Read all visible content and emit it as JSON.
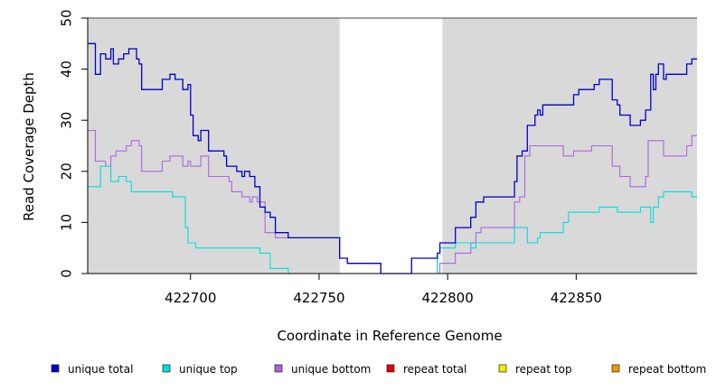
{
  "chart_data": {
    "type": "line",
    "title": "",
    "xlabel": "Coordinate in Reference Genome",
    "ylabel": "Read Coverage Depth",
    "xlim": [
      422660,
      422897
    ],
    "ylim": [
      0,
      50
    ],
    "xticks": [
      422700,
      422750,
      422800,
      422850
    ],
    "yticks": [
      0,
      10,
      20,
      30,
      40,
      50
    ],
    "shaded_regions": [
      [
        422660,
        422758
      ],
      [
        422798,
        422897
      ]
    ],
    "series": [
      {
        "name": "unique total",
        "color": "#0000cc",
        "points": [
          [
            422660,
            45
          ],
          [
            422663,
            39
          ],
          [
            422665,
            43
          ],
          [
            422667,
            42
          ],
          [
            422669,
            44
          ],
          [
            422670,
            41
          ],
          [
            422672,
            42
          ],
          [
            422674,
            43
          ],
          [
            422676,
            44
          ],
          [
            422679,
            42
          ],
          [
            422680,
            41
          ],
          [
            422681,
            36
          ],
          [
            422689,
            38
          ],
          [
            422692,
            39
          ],
          [
            422694,
            38
          ],
          [
            422697,
            36
          ],
          [
            422699,
            37
          ],
          [
            422700,
            31
          ],
          [
            422701,
            27
          ],
          [
            422703,
            26
          ],
          [
            422704,
            28
          ],
          [
            422707,
            24
          ],
          [
            422713,
            23
          ],
          [
            422714,
            21
          ],
          [
            422718,
            20
          ],
          [
            422720,
            19
          ],
          [
            422721,
            20
          ],
          [
            422723,
            19
          ],
          [
            422725,
            17
          ],
          [
            422727,
            13
          ],
          [
            422729,
            12
          ],
          [
            422731,
            11
          ],
          [
            422733,
            8
          ],
          [
            422738,
            7
          ],
          [
            422758,
            3
          ],
          [
            422761,
            2
          ],
          [
            422768,
            2
          ],
          [
            422774,
            0
          ],
          [
            422786,
            3
          ],
          [
            422796,
            4
          ],
          [
            422797,
            6
          ],
          [
            422803,
            9
          ],
          [
            422809,
            11
          ],
          [
            422811,
            14
          ],
          [
            422814,
            15
          ],
          [
            422826,
            18
          ],
          [
            422827,
            23
          ],
          [
            422829,
            24
          ],
          [
            422831,
            29
          ],
          [
            422834,
            31
          ],
          [
            422835,
            32
          ],
          [
            422836,
            31
          ],
          [
            422837,
            33
          ],
          [
            422849,
            35
          ],
          [
            422851,
            36
          ],
          [
            422857,
            37
          ],
          [
            422859,
            38
          ],
          [
            422864,
            34
          ],
          [
            422866,
            33
          ],
          [
            422867,
            31
          ],
          [
            422871,
            29
          ],
          [
            422875,
            30
          ],
          [
            422877,
            32
          ],
          [
            422879,
            39
          ],
          [
            422880,
            36
          ],
          [
            422881,
            39
          ],
          [
            422882,
            41
          ],
          [
            422884,
            38
          ],
          [
            422885,
            39
          ],
          [
            422893,
            41
          ],
          [
            422895,
            42
          ],
          [
            422897,
            42
          ]
        ]
      },
      {
        "name": "unique top",
        "color": "#00dddd",
        "points": [
          [
            422660,
            17
          ],
          [
            422665,
            21
          ],
          [
            422669,
            18
          ],
          [
            422672,
            19
          ],
          [
            422675,
            18
          ],
          [
            422677,
            16
          ],
          [
            422693,
            15
          ],
          [
            422698,
            9
          ],
          [
            422699,
            6
          ],
          [
            422702,
            5
          ],
          [
            422727,
            4
          ],
          [
            422731,
            1
          ],
          [
            422738,
            0
          ],
          [
            422796,
            4
          ],
          [
            422797,
            5
          ],
          [
            422803,
            6
          ],
          [
            422809,
            5
          ],
          [
            422811,
            6
          ],
          [
            422826,
            9
          ],
          [
            422831,
            6
          ],
          [
            422835,
            7
          ],
          [
            422836,
            8
          ],
          [
            422845,
            10
          ],
          [
            422847,
            12
          ],
          [
            422859,
            13
          ],
          [
            422866,
            12
          ],
          [
            422875,
            13
          ],
          [
            422879,
            10
          ],
          [
            422880,
            13
          ],
          [
            422882,
            15
          ],
          [
            422884,
            16
          ],
          [
            422895,
            15
          ],
          [
            422897,
            15
          ]
        ]
      },
      {
        "name": "unique bottom",
        "color": "#aa66dd",
        "points": [
          [
            422660,
            28
          ],
          [
            422663,
            22
          ],
          [
            422667,
            21
          ],
          [
            422669,
            23
          ],
          [
            422671,
            24
          ],
          [
            422675,
            25
          ],
          [
            422677,
            26
          ],
          [
            422680,
            25
          ],
          [
            422681,
            20
          ],
          [
            422689,
            22
          ],
          [
            422692,
            23
          ],
          [
            422697,
            21
          ],
          [
            422699,
            22
          ],
          [
            422700,
            21
          ],
          [
            422704,
            23
          ],
          [
            422707,
            19
          ],
          [
            422715,
            18
          ],
          [
            422716,
            16
          ],
          [
            422720,
            15
          ],
          [
            422723,
            14
          ],
          [
            422724,
            15
          ],
          [
            422726,
            14
          ],
          [
            422729,
            8
          ],
          [
            422733,
            7
          ],
          [
            422738,
            7
          ],
          [
            422758,
            3
          ],
          [
            422761,
            2
          ],
          [
            422768,
            2
          ],
          [
            422774,
            0
          ],
          [
            422786,
            3
          ],
          [
            422796,
            0
          ],
          [
            422797,
            2
          ],
          [
            422803,
            4
          ],
          [
            422809,
            6
          ],
          [
            422811,
            8
          ],
          [
            422813,
            9
          ],
          [
            422826,
            14
          ],
          [
            422828,
            15
          ],
          [
            422830,
            23
          ],
          [
            422832,
            25
          ],
          [
            422845,
            23
          ],
          [
            422849,
            24
          ],
          [
            422856,
            25
          ],
          [
            422864,
            21
          ],
          [
            422867,
            19
          ],
          [
            422871,
            17
          ],
          [
            422877,
            19
          ],
          [
            422878,
            26
          ],
          [
            422884,
            23
          ],
          [
            422893,
            25
          ],
          [
            422895,
            27
          ],
          [
            422897,
            27
          ]
        ]
      },
      {
        "name": "repeat total",
        "color": "#ee0000",
        "points": [
          [
            422660,
            0
          ],
          [
            422897,
            0
          ]
        ]
      },
      {
        "name": "repeat top",
        "color": "#eeee00",
        "points": [
          [
            422660,
            0
          ],
          [
            422897,
            0
          ]
        ]
      },
      {
        "name": "repeat bottom",
        "color": "#ee9900",
        "points": [
          [
            422660,
            0
          ],
          [
            422897,
            0
          ]
        ]
      }
    ]
  }
}
